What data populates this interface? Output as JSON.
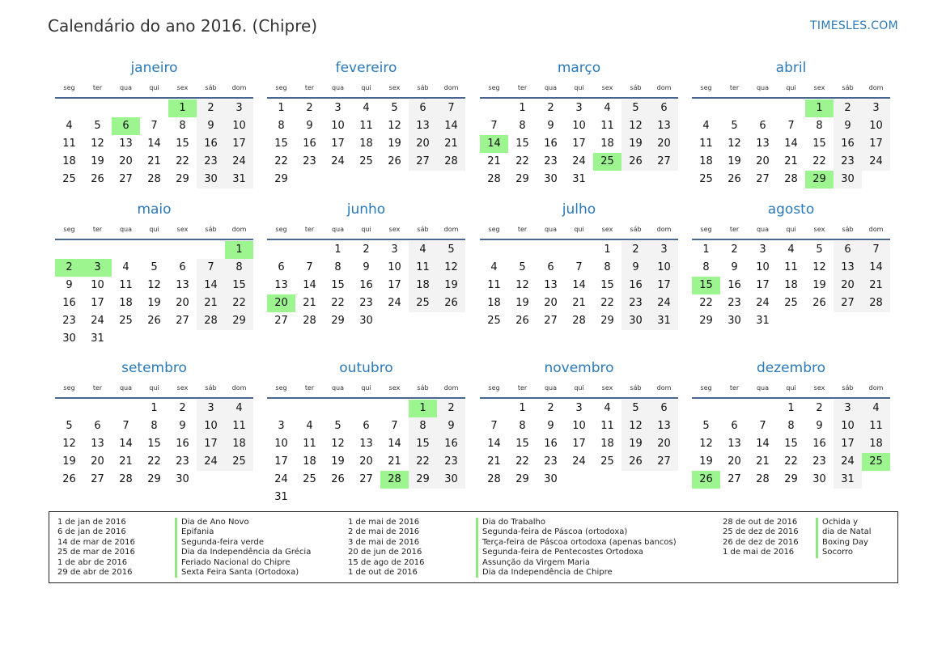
{
  "title": "Calendário do ano 2016. (Chipre)",
  "brand": "TIMESLES.COM",
  "colors": {
    "accent": "#2a7ab9",
    "holiday": "#9cf58f",
    "weekend": "#f3f3f3",
    "rule": "#4a6590"
  },
  "weekdays": [
    "seg",
    "ter",
    "qua",
    "qui",
    "sex",
    "sáb",
    "dom"
  ],
  "months": [
    {
      "name": "janeiro",
      "holidays": [
        1,
        6
      ],
      "weeks": [
        [
          null,
          null,
          null,
          null,
          1,
          2,
          3
        ],
        [
          4,
          5,
          6,
          7,
          8,
          9,
          10
        ],
        [
          11,
          12,
          13,
          14,
          15,
          16,
          17
        ],
        [
          18,
          19,
          20,
          21,
          22,
          23,
          24
        ],
        [
          25,
          26,
          27,
          28,
          29,
          30,
          31
        ]
      ]
    },
    {
      "name": "fevereiro",
      "holidays": [],
      "weeks": [
        [
          1,
          2,
          3,
          4,
          5,
          6,
          7
        ],
        [
          8,
          9,
          10,
          11,
          12,
          13,
          14
        ],
        [
          15,
          16,
          17,
          18,
          19,
          20,
          21
        ],
        [
          22,
          23,
          24,
          25,
          26,
          27,
          28
        ],
        [
          29
        ]
      ]
    },
    {
      "name": "março",
      "holidays": [
        14,
        25
      ],
      "weeks": [
        [
          null,
          1,
          2,
          3,
          4,
          5,
          6
        ],
        [
          7,
          8,
          9,
          10,
          11,
          12,
          13
        ],
        [
          14,
          15,
          16,
          17,
          18,
          19,
          20
        ],
        [
          21,
          22,
          23,
          24,
          25,
          26,
          27
        ],
        [
          28,
          29,
          30,
          31
        ]
      ]
    },
    {
      "name": "abril",
      "holidays": [
        1,
        29
      ],
      "weeks": [
        [
          null,
          null,
          null,
          null,
          1,
          2,
          3
        ],
        [
          4,
          5,
          6,
          7,
          8,
          9,
          10
        ],
        [
          11,
          12,
          13,
          14,
          15,
          16,
          17
        ],
        [
          18,
          19,
          20,
          21,
          22,
          23,
          24
        ],
        [
          25,
          26,
          27,
          28,
          29,
          30
        ]
      ]
    },
    {
      "name": "maio",
      "holidays": [
        1,
        2,
        3
      ],
      "weeks": [
        [
          null,
          null,
          null,
          null,
          null,
          null,
          1
        ],
        [
          2,
          3,
          4,
          5,
          6,
          7,
          8
        ],
        [
          9,
          10,
          11,
          12,
          13,
          14,
          15
        ],
        [
          16,
          17,
          18,
          19,
          20,
          21,
          22
        ],
        [
          23,
          24,
          25,
          26,
          27,
          28,
          29
        ],
        [
          30,
          31
        ]
      ]
    },
    {
      "name": "junho",
      "holidays": [
        20
      ],
      "weeks": [
        [
          null,
          null,
          1,
          2,
          3,
          4,
          5
        ],
        [
          6,
          7,
          8,
          9,
          10,
          11,
          12
        ],
        [
          13,
          14,
          15,
          16,
          17,
          18,
          19
        ],
        [
          20,
          21,
          22,
          23,
          24,
          25,
          26
        ],
        [
          27,
          28,
          29,
          30
        ]
      ]
    },
    {
      "name": "julho",
      "holidays": [],
      "weeks": [
        [
          null,
          null,
          null,
          null,
          1,
          2,
          3
        ],
        [
          4,
          5,
          6,
          7,
          8,
          9,
          10
        ],
        [
          11,
          12,
          13,
          14,
          15,
          16,
          17
        ],
        [
          18,
          19,
          20,
          21,
          22,
          23,
          24
        ],
        [
          25,
          26,
          27,
          28,
          29,
          30,
          31
        ]
      ]
    },
    {
      "name": "agosto",
      "holidays": [
        15
      ],
      "weeks": [
        [
          1,
          2,
          3,
          4,
          5,
          6,
          7
        ],
        [
          8,
          9,
          10,
          11,
          12,
          13,
          14
        ],
        [
          15,
          16,
          17,
          18,
          19,
          20,
          21
        ],
        [
          22,
          23,
          24,
          25,
          26,
          27,
          28
        ],
        [
          29,
          30,
          31
        ]
      ]
    },
    {
      "name": "setembro",
      "holidays": [],
      "weeks": [
        [
          null,
          null,
          null,
          1,
          2,
          3,
          4
        ],
        [
          5,
          6,
          7,
          8,
          9,
          10,
          11
        ],
        [
          12,
          13,
          14,
          15,
          16,
          17,
          18
        ],
        [
          19,
          20,
          21,
          22,
          23,
          24,
          25
        ],
        [
          26,
          27,
          28,
          29,
          30
        ]
      ]
    },
    {
      "name": "outubro",
      "holidays": [
        1,
        28
      ],
      "weeks": [
        [
          null,
          null,
          null,
          null,
          null,
          1,
          2
        ],
        [
          3,
          4,
          5,
          6,
          7,
          8,
          9
        ],
        [
          10,
          11,
          12,
          13,
          14,
          15,
          16
        ],
        [
          17,
          18,
          19,
          20,
          21,
          22,
          23
        ],
        [
          24,
          25,
          26,
          27,
          28,
          29,
          30
        ],
        [
          31
        ]
      ]
    },
    {
      "name": "novembro",
      "holidays": [],
      "weeks": [
        [
          null,
          1,
          2,
          3,
          4,
          5,
          6
        ],
        [
          7,
          8,
          9,
          10,
          11,
          12,
          13
        ],
        [
          14,
          15,
          16,
          17,
          18,
          19,
          20
        ],
        [
          21,
          22,
          23,
          24,
          25,
          26,
          27
        ],
        [
          28,
          29,
          30
        ]
      ]
    },
    {
      "name": "dezembro",
      "holidays": [
        25,
        26
      ],
      "weeks": [
        [
          null,
          null,
          null,
          1,
          2,
          3,
          4
        ],
        [
          5,
          6,
          7,
          8,
          9,
          10,
          11
        ],
        [
          12,
          13,
          14,
          15,
          16,
          17,
          18
        ],
        [
          19,
          20,
          21,
          22,
          23,
          24,
          25
        ],
        [
          26,
          27,
          28,
          29,
          30,
          31
        ]
      ]
    }
  ],
  "legend": [
    {
      "date": "1 de jan de 2016",
      "name": "Dia de Ano Novo"
    },
    {
      "date": "6 de jan de 2016",
      "name": "Epifania"
    },
    {
      "date": "14 de mar de 2016",
      "name": "Segunda-feira verde"
    },
    {
      "date": "25 de mar de 2016",
      "name": "Dia da Independência da Grécia"
    },
    {
      "date": "1 de abr de 2016",
      "name": "Feriado Nacional do Chipre"
    },
    {
      "date": "29 de abr de 2016",
      "name": "Sexta Feira Santa (Ortodoxa)"
    },
    {
      "date": "1 de mai de 2016",
      "name": "Dia do Trabalho"
    },
    {
      "date": "2 de mai de 2016",
      "name": "Segunda-feira de Páscoa (ortodoxa)"
    },
    {
      "date": "3 de mai de 2016",
      "name": "Terça-feira de Páscoa ortodoxa (apenas bancos)"
    },
    {
      "date": "20 de jun de 2016",
      "name": "Segunda-feira de Pentecostes Ortodoxa"
    },
    {
      "date": "15 de ago de 2016",
      "name": "Assunção da Virgem Maria"
    },
    {
      "date": "1 de out de 2016",
      "name": "Dia da Independência de Chipre"
    },
    {
      "date": "28 de out de 2016",
      "name": "Ochida y"
    },
    {
      "date": "25 de dez de 2016",
      "name": "dia de Natal"
    },
    {
      "date": "26 de dez de 2016",
      "name": "Boxing Day"
    },
    {
      "date": "1 de mai de 2016",
      "name": "Socorro"
    }
  ]
}
